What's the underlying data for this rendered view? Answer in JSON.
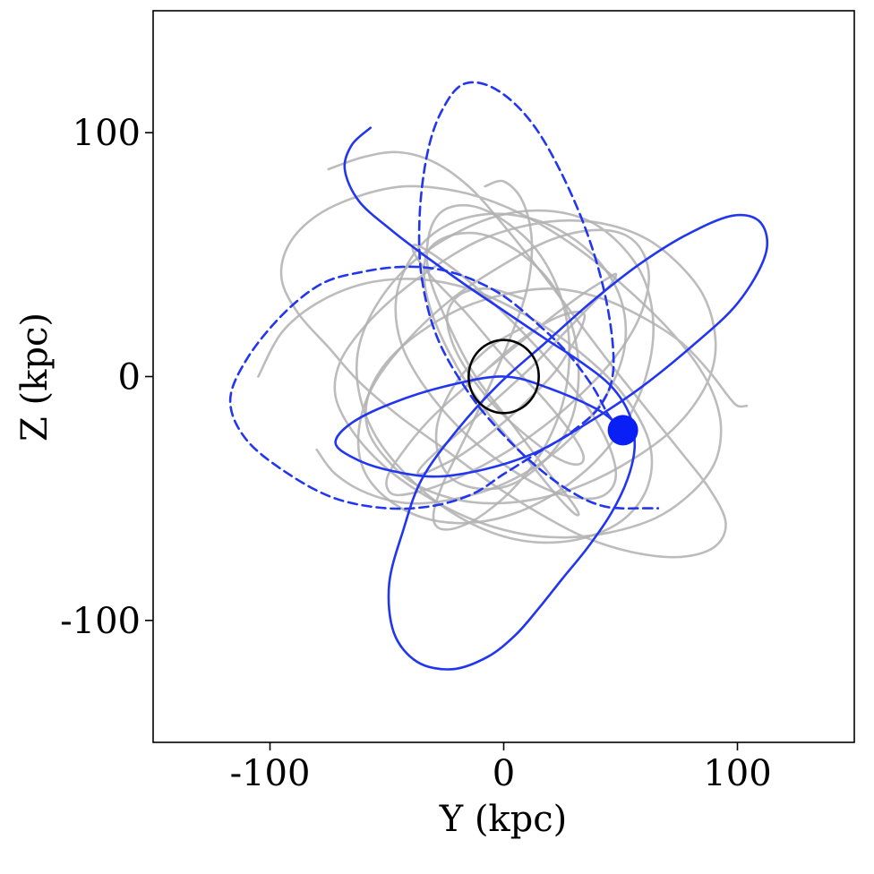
{
  "chart_data": {
    "type": "line",
    "title": "",
    "xlabel": "Y (kpc)",
    "ylabel": "Z (kpc)",
    "xlim": [
      -150,
      150
    ],
    "ylim": [
      -150,
      150
    ],
    "xticks": [
      -100,
      0,
      100
    ],
    "yticks": [
      -100,
      0,
      100
    ],
    "xtick_labels": [
      "-100",
      "0",
      "100"
    ],
    "ytick_labels": [
      "-100",
      "0",
      "100"
    ],
    "grid": false,
    "legend": "none",
    "colors": {
      "primary_orbit": "#2236f0",
      "sample_orbits": "#b0b0b0",
      "reference_circle": "#000000",
      "marker": "#0a1ff5"
    },
    "reference_circle": {
      "center": [
        0,
        0
      ],
      "radius_y": 15,
      "radius_z": 15
    },
    "current_position": {
      "y": 51,
      "z": -22
    },
    "series": [
      {
        "style": "solid",
        "color": "#2236f0",
        "y": [
          -57,
          -65,
          -68,
          -62,
          -48,
          -33,
          -17,
          0,
          17,
          33,
          46,
          54,
          56,
          53,
          46,
          36,
          25,
          15,
          5,
          -7,
          -22,
          -37,
          -47,
          -49,
          -43,
          -35,
          -20,
          -2,
          18,
          38,
          58,
          78,
          98,
          110,
          112,
          100,
          80,
          58,
          36,
          14,
          -8,
          -30,
          -51,
          -65,
          -72,
          -65,
          -48,
          -25,
          0,
          20,
          41,
          51
        ],
        "z": [
          102,
          95,
          85,
          72,
          60,
          49,
          38,
          27,
          16,
          6,
          -4,
          -16,
          -29,
          -42,
          -56,
          -70,
          -83,
          -95,
          -106,
          -115,
          -120,
          -117,
          -105,
          -85,
          -63,
          -42,
          -22,
          -3,
          14,
          31,
          46,
          58,
          66,
          63,
          50,
          30,
          12,
          -5,
          -19,
          -31,
          -38,
          -41,
          -38,
          -33,
          -27,
          -19,
          -11,
          -4,
          0,
          -5,
          -14,
          -22
        ]
      },
      {
        "style": "dashed",
        "color": "#2236f0",
        "y": [
          51,
          45,
          38,
          27,
          14,
          0,
          -14,
          -28,
          -43,
          -60,
          -78,
          -95,
          -110,
          -117,
          -110,
          -92,
          -72,
          -50,
          -30,
          -13,
          0,
          15,
          30,
          42,
          47,
          43,
          32,
          15,
          -2,
          -17,
          -27,
          -33,
          -36,
          -35,
          -28,
          -14,
          2,
          18,
          32,
          42,
          50,
          58,
          66
        ],
        "z": [
          -22,
          -16,
          -4,
          10,
          22,
          33,
          40,
          44,
          45,
          43,
          38,
          25,
          7,
          -10,
          -26,
          -40,
          -50,
          -54,
          -53,
          -48,
          -40,
          -31,
          -22,
          -11,
          5,
          35,
          68,
          100,
          117,
          120,
          108,
          90,
          65,
          40,
          15,
          -8,
          -26,
          -40,
          -49,
          -53,
          -54,
          -54,
          -54
        ]
      },
      {
        "style": "solid",
        "color": "#b0b0b0",
        "y": [
          -75,
          -60,
          -45,
          -30,
          -15,
          0,
          15,
          30,
          45,
          60,
          75,
          88,
          95,
          90,
          75,
          55,
          35,
          15,
          -5,
          -25,
          -45,
          -62,
          -75,
          -88,
          -95,
          -92,
          -80,
          -62,
          -42,
          -20,
          0,
          20,
          38,
          55,
          70,
          82,
          90,
          93,
          90,
          80,
          65,
          45,
          25,
          5,
          -15,
          -35,
          -52,
          -65,
          -72,
          -70,
          -60,
          -45,
          -28,
          -10,
          10,
          28,
          46,
          62,
          75,
          85,
          90,
          90,
          84,
          72,
          55,
          35,
          15,
          -5,
          -22,
          -38,
          -50,
          -58,
          -58,
          -50,
          -36,
          -18,
          2,
          22,
          42,
          60,
          76,
          88,
          96,
          100,
          104
        ],
        "z": [
          85,
          90,
          92,
          88,
          78,
          62,
          44,
          25,
          6,
          -12,
          -30,
          -46,
          -60,
          -70,
          -74,
          -72,
          -66,
          -56,
          -44,
          -30,
          -16,
          -2,
          12,
          26,
          40,
          54,
          66,
          74,
          78,
          76,
          70,
          60,
          48,
          34,
          20,
          6,
          -8,
          -22,
          -36,
          -48,
          -58,
          -64,
          -66,
          -64,
          -58,
          -48,
          -36,
          -22,
          -8,
          6,
          20,
          34,
          46,
          56,
          62,
          64,
          62,
          56,
          46,
          34,
          20,
          6,
          -8,
          -22,
          -34,
          -44,
          -50,
          -52,
          -50,
          -44,
          -34,
          -22,
          -8,
          6,
          18,
          28,
          34,
          36,
          32,
          24,
          14,
          2,
          -8,
          -12,
          -12
        ]
      },
      {
        "style": "solid",
        "color": "#b0b0b0",
        "y": [
          -105,
          -95,
          -80,
          -60,
          -38,
          -15,
          8,
          30,
          50,
          62,
          62,
          52,
          35,
          15,
          -5,
          -25,
          -42,
          -55,
          -62,
          -62,
          -54,
          -40,
          -22,
          -2,
          18,
          36,
          50,
          60,
          64,
          62,
          55,
          42,
          25,
          5,
          -15,
          -34,
          -50,
          -60,
          -62,
          -56,
          -42,
          -22,
          0,
          20,
          38,
          52,
          60,
          62,
          57,
          46,
          30,
          12,
          -8,
          -26,
          -40,
          -48,
          -50,
          -44,
          -32,
          -16,
          2,
          20,
          34,
          44,
          48,
          46,
          38,
          26,
          12,
          -4,
          -18,
          -30,
          -36,
          -36,
          -30,
          -18,
          -4,
          10,
          22,
          30,
          34,
          34,
          28,
          18,
          6,
          -6,
          -8
        ],
        "z": [
          0,
          18,
          30,
          38,
          40,
          36,
          26,
          12,
          -6,
          -26,
          -44,
          -58,
          -66,
          -68,
          -64,
          -54,
          -40,
          -24,
          -6,
          12,
          30,
          46,
          58,
          66,
          68,
          64,
          54,
          40,
          22,
          4,
          -14,
          -32,
          -46,
          -56,
          -60,
          -58,
          -50,
          -38,
          -22,
          -4,
          14,
          32,
          46,
          56,
          60,
          58,
          50,
          38,
          22,
          6,
          -10,
          -24,
          -36,
          -44,
          -48,
          -48,
          -42,
          -32,
          -18,
          -4,
          10,
          24,
          34,
          40,
          42,
          38,
          30,
          18,
          4,
          -10,
          -22,
          -32,
          -38,
          -40,
          -38,
          -32,
          -22,
          -10,
          2,
          14,
          22,
          26,
          26,
          22,
          14,
          4,
          2
        ]
      },
      {
        "style": "solid",
        "color": "#b0b0b0",
        "y": [
          -8,
          0,
          8,
          12,
          10,
          2,
          -8,
          -18,
          -26,
          -30,
          -28,
          -20,
          -8,
          6,
          18,
          26,
          28,
          24,
          14,
          0,
          -14,
          -26,
          -32,
          -32,
          -24,
          -12,
          4,
          18,
          28,
          32,
          30,
          22,
          10,
          -6,
          -20,
          -30,
          -34,
          -32,
          -22,
          -8,
          8,
          22,
          30,
          32,
          28,
          18,
          4,
          -10,
          -22,
          -28,
          -28,
          -20,
          -6,
          8
        ],
        "z": [
          78,
          80,
          72,
          56,
          36,
          14,
          -8,
          -28,
          -44,
          -56,
          -62,
          -62,
          -56,
          -44,
          -28,
          -8,
          14,
          34,
          52,
          64,
          70,
          68,
          58,
          42,
          22,
          0,
          -20,
          -38,
          -50,
          -56,
          -56,
          -48,
          -34,
          -16,
          4,
          24,
          40,
          52,
          58,
          58,
          50,
          36,
          18,
          -2,
          -20,
          -34,
          -44,
          -46,
          -42,
          -32,
          -18,
          -2,
          12,
          20
        ]
      },
      {
        "style": "solid",
        "color": "#b0b0b0",
        "y": [
          -80,
          -72,
          -58,
          -40,
          -20,
          0,
          18,
          34,
          46,
          52,
          50,
          40,
          24,
          6,
          -12,
          -28,
          -40,
          -46,
          -44,
          -34,
          -18,
          0,
          18,
          34,
          44,
          48,
          44,
          34,
          18,
          0,
          -16,
          -30,
          -38,
          -38,
          -30,
          -16,
          0,
          16,
          28,
          34,
          32,
          24,
          12,
          -2,
          -14,
          -22,
          -24,
          -18,
          -6,
          8
        ],
        "z": [
          -30,
          -40,
          -48,
          -52,
          -50,
          -44,
          -34,
          -20,
          -4,
          14,
          32,
          48,
          60,
          66,
          66,
          60,
          48,
          32,
          14,
          -4,
          -22,
          -36,
          -46,
          -50,
          -48,
          -40,
          -26,
          -10,
          8,
          26,
          40,
          50,
          54,
          50,
          40,
          26,
          8,
          -8,
          -22,
          -32,
          -36,
          -34,
          -26,
          -14,
          0,
          14,
          26,
          34,
          36,
          32
        ]
      }
    ]
  }
}
